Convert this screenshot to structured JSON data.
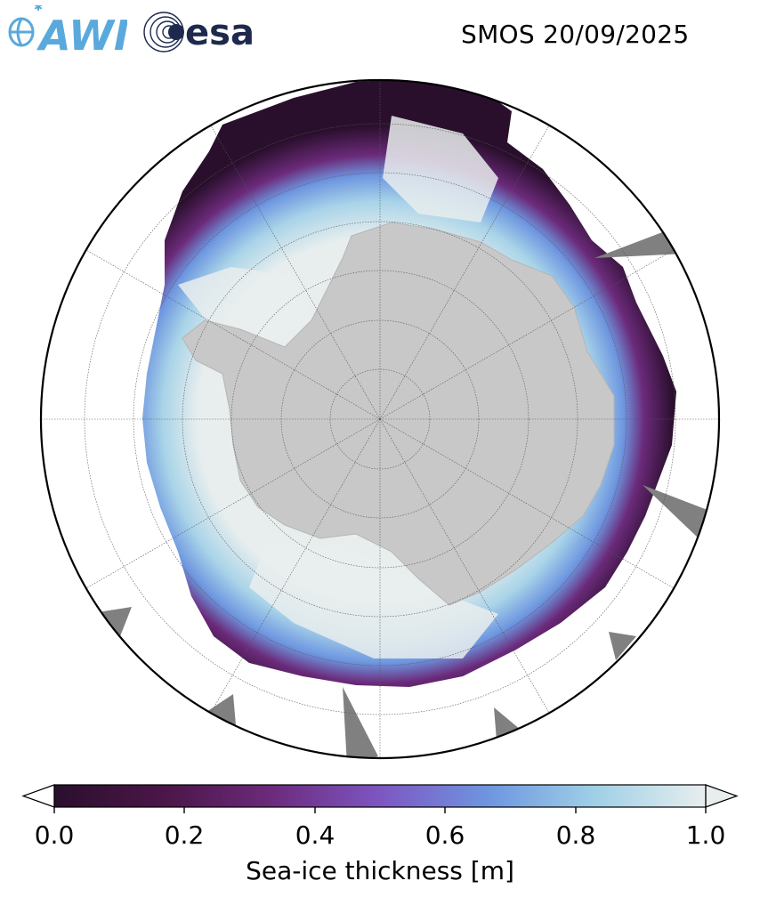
{
  "header": {
    "title": "SMOS 20/09/2025",
    "logos": [
      {
        "name": "AWI",
        "text": "AWI",
        "color": "#5aa9dc"
      },
      {
        "name": "esa",
        "text": "esa",
        "color": "#1d2a4d"
      }
    ]
  },
  "map": {
    "projection": "south-polar-stereographic",
    "land_color": "#c8c8c8",
    "no_data_color": "#808080",
    "ocean_color": "#ffffff",
    "graticule": true
  },
  "colorbar": {
    "label": "Sea-ice thickness [m]",
    "min": 0.0,
    "max": 1.0,
    "extend": "both",
    "ticks": [
      "0.0",
      "0.2",
      "0.4",
      "0.6",
      "0.8",
      "1.0"
    ],
    "colors": [
      "#2a0f2d",
      "#4b1648",
      "#6b2a7a",
      "#7d56c2",
      "#6e97e0",
      "#9fd0e6",
      "#e8eeee"
    ]
  }
}
